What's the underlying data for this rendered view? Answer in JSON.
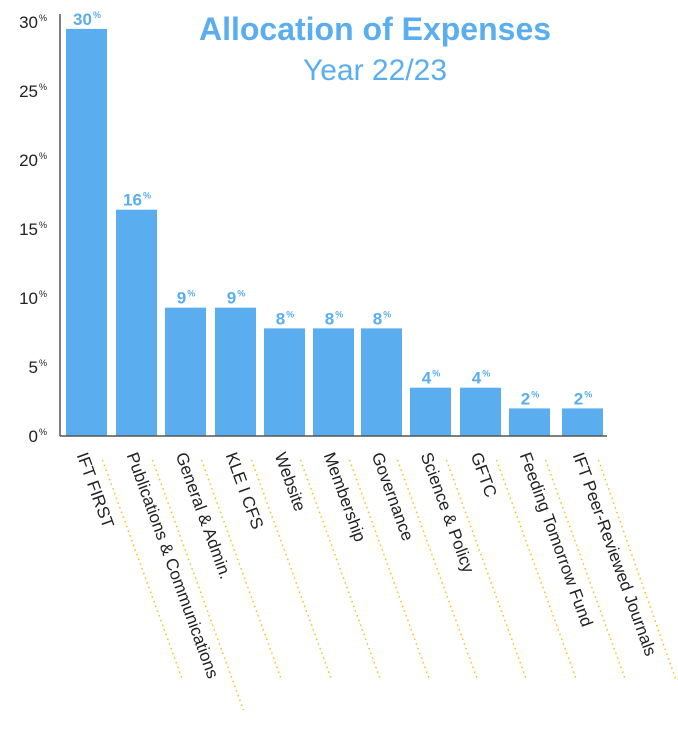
{
  "chart_data": {
    "type": "bar",
    "title": "Allocation of Expenses",
    "subtitle": "Year 22/23",
    "categories": [
      "IFT FIRST",
      "Publications & Communications",
      "General & Admin.",
      "KLE I CFS",
      "Website",
      "Membership",
      "Governance",
      "Science & Policy",
      "GFTC",
      "Feeding Tomorrow Fund",
      "IFT Peer-Reviewed Journals"
    ],
    "values": [
      29.5,
      16.4,
      9.3,
      9.3,
      7.8,
      7.8,
      7.8,
      3.5,
      3.5,
      2.0,
      2.0
    ],
    "value_labels": [
      "30",
      "16",
      "9",
      "9",
      "8",
      "8",
      "8",
      "4",
      "4",
      "2",
      "2"
    ],
    "value_label_unit": "%",
    "y_ticks": [
      "0",
      "5",
      "10",
      "15",
      "20",
      "25",
      "30"
    ],
    "y_tick_unit": "%",
    "ylim": [
      0,
      30
    ],
    "grid": false,
    "legend": "none"
  },
  "colors": {
    "bar": "#5aaeef",
    "accent": "#5aaeef",
    "axis": "#555555",
    "leader": "#f2c21b",
    "text": "#222222"
  }
}
